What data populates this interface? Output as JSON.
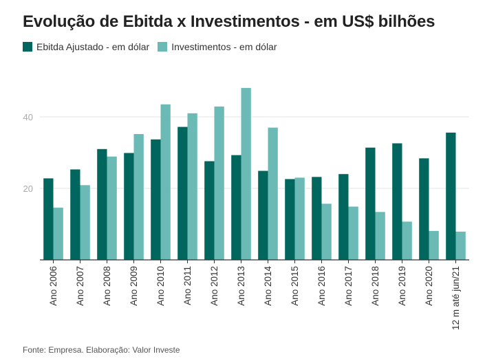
{
  "chart_data": {
    "type": "bar",
    "title": "Evolução de Ebitda x Investimentos - em US$ bilhões",
    "categories": [
      "Ano 2006",
      "Ano 2007",
      "Ano 2008",
      "Ano 2009",
      "Ano 2010",
      "Ano 2011",
      "Ano 2012",
      "Ano 2013",
      "Ano 2014",
      "Ano 2015",
      "Ano 2016",
      "Ano 2017",
      "Ano 2018",
      "Ano 2019",
      "Ano 2020",
      "12 m até jun/21"
    ],
    "series": [
      {
        "name": "Ebitda Ajustado - em dólar",
        "color": "#00665e",
        "values": [
          22.8,
          25.3,
          31.0,
          29.9,
          33.7,
          37.2,
          27.6,
          29.3,
          24.9,
          22.6,
          23.2,
          24.0,
          31.4,
          32.6,
          28.4,
          35.6
        ]
      },
      {
        "name": "Investimentos - em dólar",
        "color": "#6bbab5",
        "values": [
          14.6,
          20.9,
          28.9,
          35.2,
          43.5,
          41.0,
          42.9,
          48.1,
          37.0,
          23.0,
          15.7,
          14.9,
          13.4,
          10.7,
          8.1,
          7.9
        ]
      }
    ],
    "yticks": [
      20,
      40
    ],
    "ylim": [
      0,
      48
    ],
    "grid": true,
    "legend_position": "top-left"
  },
  "source_note": "Fonte: Empresa. Elaboração: Valor Investe"
}
